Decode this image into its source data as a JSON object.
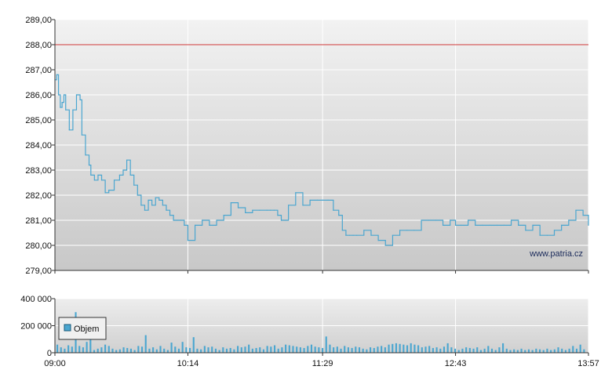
{
  "watermark": "www.patria.cz",
  "legend": {
    "label": "Objem"
  },
  "colors": {
    "price_line": "#4aa6d0",
    "volume_bars": "#4aa6d0",
    "reference_line": "#d03a3a",
    "grid": "#ffffff",
    "axis": "#333333",
    "plot_bg_top": "#f2f2f2",
    "plot_bg_bottom": "#c8c8c8"
  },
  "chart_data": [
    {
      "type": "line",
      "name": "price",
      "ylim": [
        279,
        289
      ],
      "yticks": [
        "279,00",
        "280,00",
        "281,00",
        "282,00",
        "283,00",
        "284,00",
        "285,00",
        "286,00",
        "287,00",
        "288,00",
        "289,00"
      ],
      "xlim": [
        "09:00",
        "13:57"
      ],
      "xticks": [
        "09:00",
        "10:14",
        "11:29",
        "12:43",
        "13:57"
      ],
      "reference_value": 288.0,
      "grid": true,
      "x": [
        "09:00",
        "09:01",
        "09:02",
        "09:03",
        "09:04",
        "09:05",
        "09:06",
        "09:08",
        "09:10",
        "09:12",
        "09:14",
        "09:15",
        "09:17",
        "09:19",
        "09:20",
        "09:22",
        "09:24",
        "09:26",
        "09:28",
        "09:30",
        "09:33",
        "09:36",
        "09:38",
        "09:40",
        "09:42",
        "09:44",
        "09:46",
        "09:48",
        "09:50",
        "09:52",
        "09:54",
        "09:56",
        "09:58",
        "10:00",
        "10:02",
        "10:04",
        "10:06",
        "10:08",
        "10:10",
        "10:12",
        "10:14",
        "10:18",
        "10:22",
        "10:26",
        "10:30",
        "10:34",
        "10:38",
        "10:42",
        "10:46",
        "10:50",
        "10:54",
        "10:58",
        "11:00",
        "11:02",
        "11:04",
        "11:06",
        "11:08",
        "11:10",
        "11:14",
        "11:18",
        "11:22",
        "11:26",
        "11:29",
        "11:32",
        "11:35",
        "11:38",
        "11:40",
        "11:42",
        "11:44",
        "11:46",
        "11:48",
        "11:52",
        "11:56",
        "12:00",
        "12:04",
        "12:08",
        "12:12",
        "12:16",
        "12:20",
        "12:24",
        "12:28",
        "12:32",
        "12:36",
        "12:40",
        "12:43",
        "12:46",
        "12:50",
        "12:54",
        "12:58",
        "13:02",
        "13:06",
        "13:10",
        "13:14",
        "13:18",
        "13:22",
        "13:26",
        "13:30",
        "13:34",
        "13:38",
        "13:42",
        "13:46",
        "13:50",
        "13:54",
        "13:57"
      ],
      "values": [
        286.6,
        286.8,
        286.0,
        285.5,
        285.7,
        286.0,
        285.4,
        284.6,
        285.4,
        286.0,
        285.8,
        284.4,
        283.6,
        283.2,
        282.8,
        282.6,
        282.8,
        282.6,
        282.1,
        282.2,
        282.6,
        282.8,
        283.0,
        283.4,
        282.8,
        282.4,
        282.0,
        281.6,
        281.4,
        281.8,
        281.6,
        281.9,
        281.8,
        281.6,
        281.4,
        281.2,
        281.0,
        281.0,
        281.0,
        280.8,
        280.2,
        280.8,
        281.0,
        280.8,
        281.0,
        281.2,
        281.7,
        281.5,
        281.3,
        281.4,
        281.4,
        281.4,
        281.4,
        281.4,
        281.2,
        281.0,
        281.0,
        281.6,
        282.1,
        281.6,
        281.8,
        281.8,
        281.8,
        281.8,
        281.4,
        281.2,
        280.6,
        280.4,
        280.4,
        280.4,
        280.4,
        280.6,
        280.4,
        280.2,
        280.0,
        280.4,
        280.6,
        280.6,
        280.6,
        281.0,
        281.0,
        281.0,
        280.8,
        281.0,
        280.8,
        280.8,
        281.0,
        280.8,
        280.8,
        280.8,
        280.8,
        280.8,
        281.0,
        280.8,
        280.6,
        280.8,
        280.4,
        280.4,
        280.6,
        280.8,
        281.0,
        281.4,
        281.2,
        280.8
      ]
    },
    {
      "type": "bar",
      "name": "Objem",
      "ylim": [
        0,
        400000
      ],
      "yticks": [
        "0",
        "200 000",
        "400 000"
      ],
      "xlim": [
        "09:00",
        "13:57"
      ],
      "xticks": [
        "09:00",
        "10:14",
        "11:29",
        "12:43",
        "13:57"
      ],
      "grid": true,
      "legend_position": "left",
      "values": [
        60000,
        40000,
        30000,
        55000,
        45000,
        300000,
        50000,
        40000,
        80000,
        100000,
        20000,
        30000,
        40000,
        60000,
        50000,
        30000,
        20000,
        25000,
        40000,
        35000,
        30000,
        20000,
        50000,
        45000,
        130000,
        30000,
        40000,
        25000,
        50000,
        30000,
        20000,
        75000,
        45000,
        30000,
        80000,
        40000,
        35000,
        115000,
        30000,
        25000,
        50000,
        40000,
        45000,
        30000,
        20000,
        40000,
        30000,
        35000,
        25000,
        50000,
        40000,
        45000,
        60000,
        30000,
        35000,
        40000,
        25000,
        50000,
        45000,
        55000,
        30000,
        40000,
        60000,
        55000,
        50000,
        45000,
        40000,
        35000,
        50000,
        60000,
        45000,
        40000,
        35000,
        120000,
        60000,
        40000,
        45000,
        30000,
        50000,
        40000,
        35000,
        45000,
        40000,
        30000,
        25000,
        40000,
        35000,
        45000,
        50000,
        40000,
        60000,
        65000,
        70000,
        65000,
        60000,
        55000,
        70000,
        60000,
        55000,
        40000,
        45000,
        50000,
        35000,
        40000,
        30000,
        45000,
        70000,
        40000,
        30000,
        20000,
        30000,
        40000,
        35000,
        30000,
        40000,
        20000,
        30000,
        50000,
        30000,
        20000,
        40000,
        70000,
        30000,
        20000,
        25000,
        20000,
        30000,
        20000,
        25000,
        20000,
        30000,
        25000,
        20000,
        30000,
        20000,
        25000,
        40000,
        30000,
        20000,
        30000,
        50000,
        30000,
        60000,
        25000
      ]
    }
  ]
}
